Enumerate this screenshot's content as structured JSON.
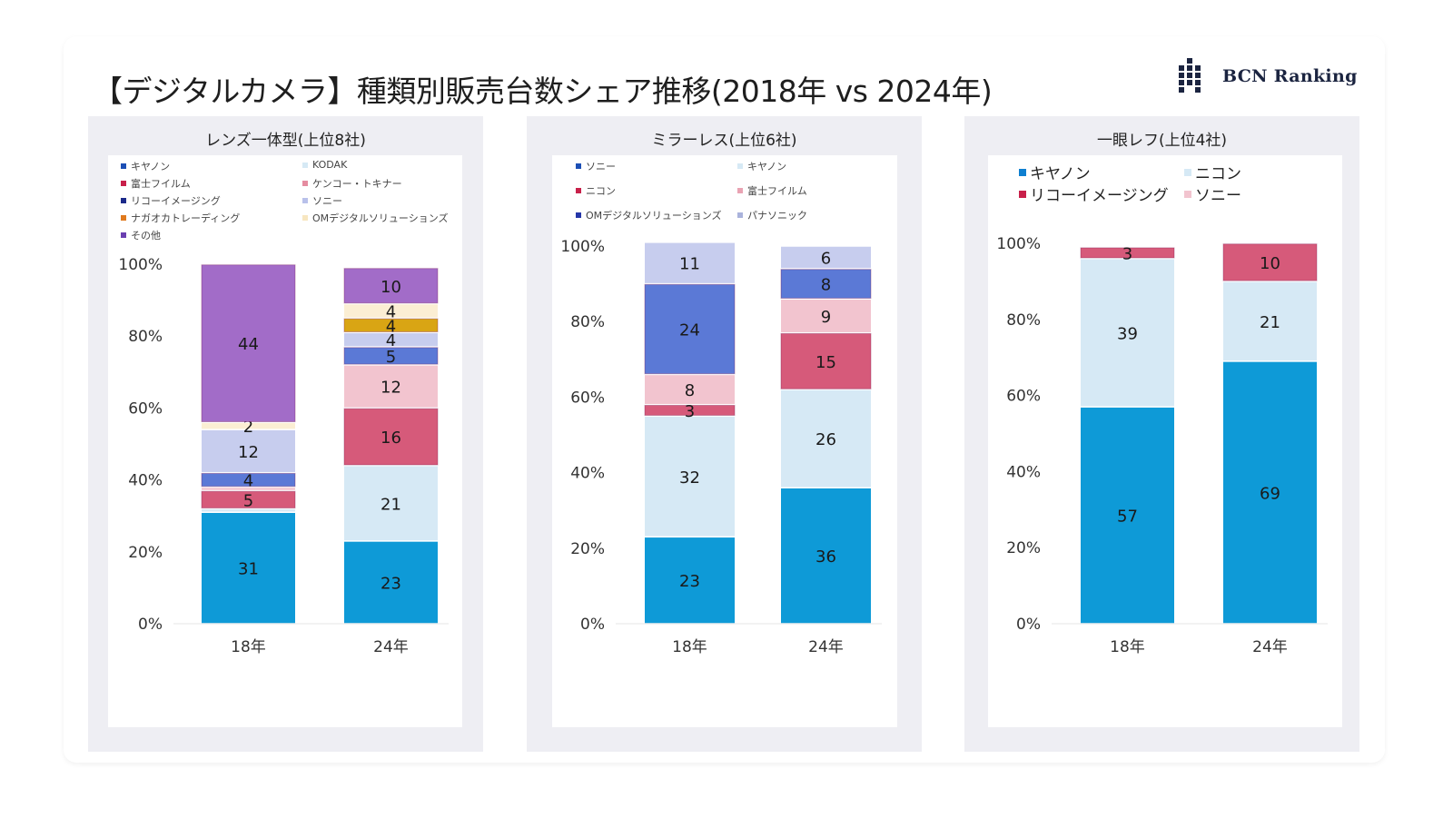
{
  "header": {
    "title": "【デジタルカメラ】種類別販売台数シェア推移(2018年 vs 2024年)",
    "logo_text": "BCN Ranking",
    "logo_icon": "bcn-dot-matrix-logo-icon"
  },
  "chart_data": [
    {
      "type": "bar",
      "stacked": true,
      "title": "レンズ一体型(上位8社)",
      "categories": [
        "18年",
        "24年"
      ],
      "ylim": [
        0,
        100
      ],
      "yticks": [
        "0%",
        "20%",
        "40%",
        "60%",
        "80%",
        "100%"
      ],
      "legend_position": "top",
      "legend": [
        {
          "name": "キヤノン",
          "color": "#0e9ad7"
        },
        {
          "name": "富士フイルム",
          "color": "#d65a7a"
        },
        {
          "name": "リコーイメージング",
          "color": "#5b79d6"
        },
        {
          "name": "ナガオカトレーディング",
          "color": "#d9a514"
        },
        {
          "name": "その他",
          "color": "#a26cc8"
        },
        {
          "name": "KODAK",
          "color": "#d6e9f5"
        },
        {
          "name": "ケンコー・トキナー",
          "color": "#f2c4cf"
        },
        {
          "name": "ソニー",
          "color": "#c7cdee"
        },
        {
          "name": "OMデジタルソリューションズ",
          "color": "#fbeed3"
        }
      ],
      "series": [
        {
          "name": "キヤノン",
          "values": [
            31,
            23
          ],
          "color": "#0e9ad7",
          "labels": [
            "31",
            "23"
          ]
        },
        {
          "name": "KODAK",
          "values": [
            1,
            21
          ],
          "color": "#d6e9f5",
          "labels": [
            "",
            "21"
          ]
        },
        {
          "name": "富士フイルム",
          "values": [
            5,
            16
          ],
          "color": "#d65a7a",
          "labels": [
            "5",
            "16"
          ]
        },
        {
          "name": "ケンコー・トキナー",
          "values": [
            1,
            12
          ],
          "color": "#f2c4cf",
          "labels": [
            "",
            "12"
          ]
        },
        {
          "name": "リコーイメージング",
          "values": [
            4,
            5
          ],
          "color": "#5b79d6",
          "labels": [
            "4",
            "5"
          ]
        },
        {
          "name": "ソニー",
          "values": [
            12,
            4
          ],
          "color": "#c7cdee",
          "labels": [
            "12",
            "4"
          ]
        },
        {
          "name": "ナガオカトレーディング",
          "values": [
            0,
            4
          ],
          "color": "#d9a514",
          "labels": [
            "",
            "4"
          ]
        },
        {
          "name": "OMデジタルソリューションズ",
          "values": [
            2,
            4
          ],
          "color": "#fbeed3",
          "labels": [
            "2",
            "4"
          ]
        },
        {
          "name": "その他",
          "values": [
            44,
            10
          ],
          "color": "#a26cc8",
          "labels": [
            "44",
            "10"
          ]
        }
      ]
    },
    {
      "type": "bar",
      "stacked": true,
      "title": "ミラーレス(上位6社)",
      "categories": [
        "18年",
        "24年"
      ],
      "ylim": [
        0,
        100
      ],
      "yticks": [
        "0%",
        "20%",
        "40%",
        "60%",
        "80%",
        "100%"
      ],
      "legend_position": "top",
      "legend": [
        {
          "name": "ソニー",
          "color": "#1c4fb5"
        },
        {
          "name": "キヤノン",
          "color": "#d6e9f5"
        },
        {
          "name": "ニコン",
          "color": "#c8204a"
        },
        {
          "name": "富士フイルム",
          "color": "#f2c4cf"
        },
        {
          "name": "OMデジタルソリューションズ",
          "color": "#2536a8"
        },
        {
          "name": "パナソニック",
          "color": "#c7cdee"
        }
      ],
      "series": [
        {
          "name": "ソニー",
          "values": [
            23,
            36
          ],
          "color": "#0e9ad7",
          "labels": [
            "23",
            "36"
          ]
        },
        {
          "name": "キヤノン",
          "values": [
            32,
            26
          ],
          "color": "#d6e9f5",
          "labels": [
            "32",
            "26"
          ]
        },
        {
          "name": "ニコン",
          "values": [
            3,
            15
          ],
          "color": "#d65a7a",
          "labels": [
            "3",
            "15"
          ]
        },
        {
          "name": "富士フイルム",
          "values": [
            8,
            9
          ],
          "color": "#f2c4cf",
          "labels": [
            "8",
            "9"
          ]
        },
        {
          "name": "OMデジタルソリューションズ",
          "values": [
            24,
            8
          ],
          "color": "#5b79d6",
          "labels": [
            "24",
            "8"
          ]
        },
        {
          "name": "パナソニック",
          "values": [
            11,
            6
          ],
          "color": "#c7cdee",
          "labels": [
            "11",
            "6"
          ]
        }
      ]
    },
    {
      "type": "bar",
      "stacked": true,
      "title": "一眼レフ(上位4社)",
      "categories": [
        "18年",
        "24年"
      ],
      "ylim": [
        0,
        100
      ],
      "yticks": [
        "0%",
        "20%",
        "40%",
        "60%",
        "80%",
        "100%"
      ],
      "legend_position": "top",
      "legend": [
        {
          "name": "キヤノン",
          "color": "#0e7fd0"
        },
        {
          "name": "ニコン",
          "color": "#d6e9f5"
        },
        {
          "name": "リコーイメージング",
          "color": "#c8204a"
        },
        {
          "name": "ソニー",
          "color": "#f2c4cf"
        }
      ],
      "series": [
        {
          "name": "キヤノン",
          "values": [
            57,
            69
          ],
          "color": "#0e9ad7",
          "labels": [
            "57",
            "69"
          ]
        },
        {
          "name": "ニコン",
          "values": [
            39,
            21
          ],
          "color": "#d6e9f5",
          "labels": [
            "39",
            "21"
          ]
        },
        {
          "name": "リコーイメージング",
          "values": [
            3,
            10
          ],
          "color": "#d65a7a",
          "labels": [
            "3",
            "10"
          ]
        },
        {
          "name": "ソニー",
          "values": [
            0,
            0
          ],
          "color": "#f2c4cf",
          "labels": [
            "",
            ""
          ]
        }
      ]
    }
  ]
}
